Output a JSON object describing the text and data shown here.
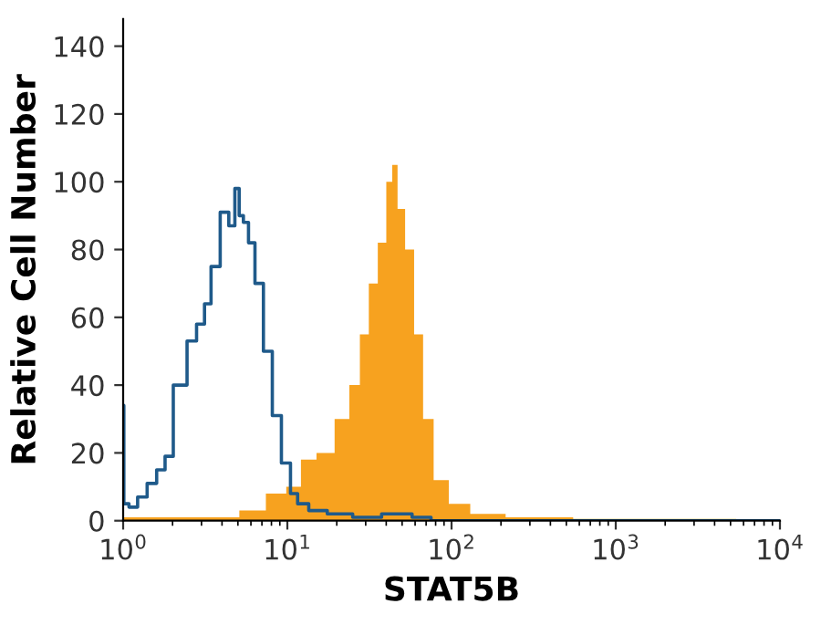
{
  "chart_data": {
    "type": "area",
    "xlabel": "STAT5B",
    "ylabel": "Relative Cell Number",
    "log": "x",
    "grid": false,
    "legend": false,
    "xlim": [
      1,
      10000
    ],
    "ylim": [
      0,
      148
    ],
    "xticks": [
      {
        "value": 1,
        "label": "10$^{0}$"
      },
      {
        "value": 10,
        "label": "10$^{1}$"
      },
      {
        "value": 100,
        "label": "10$^{2}$"
      },
      {
        "value": 1000,
        "label": "10$^{3}$"
      },
      {
        "value": 10000,
        "label": "10$^{4}$"
      }
    ],
    "yticks": [
      0,
      20,
      40,
      60,
      80,
      100,
      120,
      140
    ],
    "series": [
      {
        "color": "#f7a21f",
        "x": [
          1,
          2,
          4,
          6.2,
          8.6,
          11.1,
          13.1,
          17,
          21.8,
          25.9,
          29.4,
          33.3,
          37.8,
          42.3,
          44.8,
          49,
          55.3,
          63,
          71.2,
          84.4,
          108,
          152,
          275,
          826,
          10000
        ],
        "values": [
          1,
          1,
          1,
          3,
          8,
          10,
          18,
          20,
          30,
          40,
          55,
          70,
          82,
          100,
          105,
          92,
          80,
          55,
          30,
          12,
          5,
          2,
          1,
          0.5,
          0
        ]
      },
      {
        "type": "step",
        "color": "#1f5a8a",
        "x": [
          1,
          1.02,
          1.15,
          1.3,
          1.5,
          1.7,
          1.9,
          2.14,
          2.3,
          2.6,
          3.0,
          3.26,
          3.6,
          4.2,
          4.6,
          4.98,
          5.2,
          5.6,
          6.0,
          6.7,
          7.6,
          8.6,
          9.8,
          11.1,
          12,
          15,
          20,
          30,
          45,
          70,
          80,
          10000
        ],
        "values": [
          34,
          5,
          4,
          7,
          11,
          15,
          19,
          40,
          40,
          53,
          58,
          64,
          75,
          91,
          87,
          98,
          90,
          88,
          82,
          70,
          50,
          31,
          17,
          8,
          5,
          3,
          2,
          1,
          2,
          1,
          0,
          0
        ]
      }
    ]
  }
}
